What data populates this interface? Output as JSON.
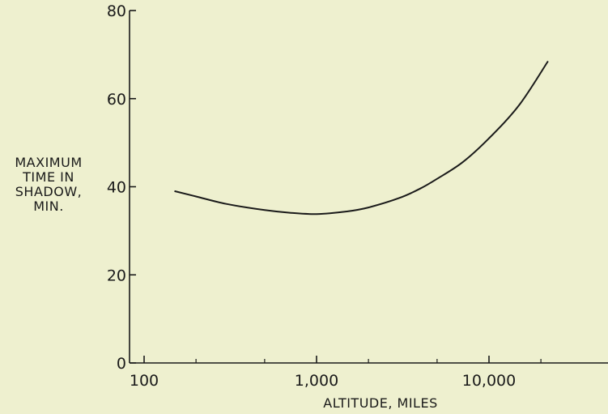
{
  "chart_data": {
    "type": "line",
    "title": "",
    "xlabel": "ALTITUDE, MILES",
    "ylabel_lines": [
      "MAXIMUM",
      "TIME IN",
      "SHADOW,",
      "MIN."
    ],
    "x_scale": "log",
    "xlim": [
      100,
      30000
    ],
    "ylim": [
      0,
      80
    ],
    "x_ticks": [
      100,
      1000,
      10000
    ],
    "x_tick_labels": [
      "100",
      "1,000",
      "10,000"
    ],
    "y_ticks": [
      0,
      20,
      40,
      60,
      80
    ],
    "y_tick_labels": [
      "0",
      "20",
      "40",
      "60",
      "80"
    ],
    "grid": false,
    "colors": {
      "background": "#eef0cf",
      "ink": "#1a1a1a"
    },
    "series": [
      {
        "x": [
          150,
          200,
          300,
          500,
          700,
          1000,
          1500,
          2000,
          3000,
          4000,
          5000,
          7000,
          10000,
          15000,
          22000
        ],
        "y": [
          39,
          37.8,
          36.1,
          34.7,
          34.1,
          33.8,
          34.4,
          35.3,
          37.4,
          39.6,
          41.8,
          45.5,
          51,
          58.6,
          68.5
        ]
      }
    ]
  }
}
